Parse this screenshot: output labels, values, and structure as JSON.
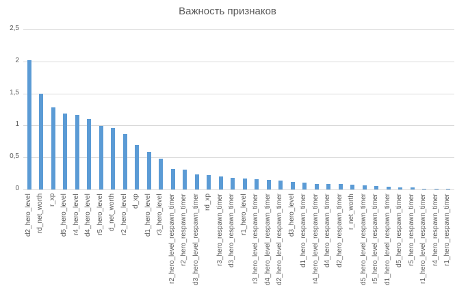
{
  "chart_data": {
    "type": "bar",
    "title": "Важность признаков",
    "xlabel": "",
    "ylabel": "",
    "ylim": [
      0,
      2.5
    ],
    "yticks": [
      "0",
      "0,5",
      "1",
      "1,5",
      "2",
      "2,5"
    ],
    "grid": true,
    "legend": null,
    "color": "#5b9bd5",
    "categories": [
      "d2_hero_level",
      "rd_net_worth",
      "r_xp",
      "d5_hero_level",
      "r4_hero_level",
      "d4_hero_level",
      "r5_hero_level",
      "d_net_worth",
      "r2_hero_level",
      "d_xp",
      "d1_hero_level",
      "r3_hero_level",
      "r2_hero_level_respawn_timer",
      "r2_hero_respawn_timer",
      "d3_hero_level_respawn_timer",
      "rd_xp",
      "r3_hero_respawn_timer",
      "d3_hero_respawn_timer",
      "r1_hero_level",
      "r3_hero_level_respawn_timer",
      "d4_hero_level_respawn_timer",
      "d2_hero_level_respawn_timer",
      "d3_hero_level",
      "d1_hero_respawn_timer",
      "r4_hero_level_respawn_timer",
      "d4_hero_respawn_timer",
      "d2_hero_respawn_timer",
      "r_net_worth",
      "d5_hero_level_respawn_timer",
      "r5_hero_level_respawn_timer",
      "d1_hero_level_respawn_timer",
      "d5_hero_respawn_timer",
      "r5_hero_respawn_timer",
      "r1_hero_level_respawn_timer",
      "r4_hero_respawn_timer",
      "r1_hero_respawn_timer"
    ],
    "values": [
      2.02,
      1.5,
      1.28,
      1.19,
      1.17,
      1.1,
      0.99,
      0.96,
      0.87,
      0.69,
      0.59,
      0.48,
      0.32,
      0.31,
      0.24,
      0.22,
      0.2,
      0.18,
      0.17,
      0.16,
      0.15,
      0.14,
      0.12,
      0.11,
      0.09,
      0.09,
      0.09,
      0.07,
      0.06,
      0.05,
      0.04,
      0.03,
      0.03,
      0.01,
      0.01,
      0.01
    ]
  }
}
